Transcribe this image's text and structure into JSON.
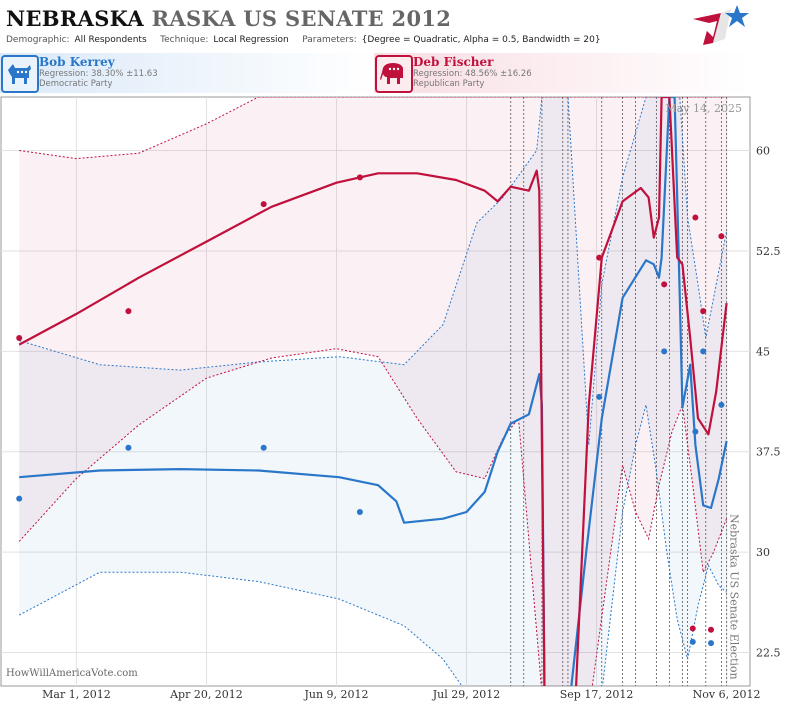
{
  "header": {
    "title_part1": "NEBRASKA",
    "title_part2": "RASKA US SENATE 2012",
    "demographic_label": "Demographic:",
    "demographic_value": "All Respondents",
    "technique_label": "Technique:",
    "technique_value": "Local Regression",
    "parameters_label": "Parameters:",
    "parameters_value": "{Degree = Quadratic, Alpha = 0.5, Bandwidth = 20}"
  },
  "candidates": [
    {
      "name": "Bob Kerrey",
      "regression": "Regression: 38.30% ±11.63",
      "party": "Democratic Party",
      "color": "#2a77c9",
      "icon": "donkey-icon"
    },
    {
      "name": "Deb Fischer",
      "regression": "Regression: 48.56% ±16.26",
      "party": "Republican Party",
      "color": "#c0103c",
      "icon": "elephant-icon"
    }
  ],
  "footer": {
    "source": "HowWillAmericaVote.com"
  },
  "chart_data": {
    "type": "line",
    "date_annotation": "May 14, 2025",
    "event_label": "Nebraska US Senate Election",
    "event_date": "2012-11-06",
    "x_range": [
      "2012-02-01",
      "2012-11-15"
    ],
    "ylim": [
      20,
      64
    ],
    "y_ticks": [
      22.5,
      30,
      37.5,
      45,
      52.5,
      60
    ],
    "x_ticks": [
      {
        "label": "Mar 1, 2012",
        "date": "2012-03-01"
      },
      {
        "label": "Apr 20, 2012",
        "date": "2012-04-20"
      },
      {
        "label": "Jun 9, 2012",
        "date": "2012-06-09"
      },
      {
        "label": "Jul 29, 2012",
        "date": "2012-07-29"
      },
      {
        "label": "Sep 17, 2012",
        "date": "2012-09-17"
      },
      {
        "label": "Nov 6, 2012",
        "date": "2012-11-06"
      }
    ],
    "poll_dates": [
      "2012-08-15",
      "2012-08-20",
      "2012-08-27",
      "2012-09-04",
      "2012-09-06",
      "2012-09-19",
      "2012-09-27",
      "2012-10-02",
      "2012-10-10",
      "2012-10-15",
      "2012-10-20",
      "2012-10-22",
      "2012-10-29",
      "2012-11-04"
    ],
    "series": [
      {
        "name": "Bob Kerrey",
        "color": "#2a77c9",
        "points": [
          {
            "date": "2012-02-08",
            "value": 34.0
          },
          {
            "date": "2012-03-21",
            "value": 37.8
          },
          {
            "date": "2012-05-12",
            "value": 37.8
          },
          {
            "date": "2012-06-18",
            "value": 33.0
          },
          {
            "date": "2012-09-18",
            "value": 41.6
          },
          {
            "date": "2012-10-13",
            "value": 45.0
          },
          {
            "date": "2012-10-24",
            "value": 23.3
          },
          {
            "date": "2012-10-25",
            "value": 39.0
          },
          {
            "date": "2012-10-28",
            "value": 45.0
          },
          {
            "date": "2012-10-31",
            "value": 23.2
          },
          {
            "date": "2012-11-04",
            "value": 41.0
          }
        ],
        "trend": [
          {
            "date": "2012-02-08",
            "value": 35.6
          },
          {
            "date": "2012-03-10",
            "value": 36.1
          },
          {
            "date": "2012-04-10",
            "value": 36.2
          },
          {
            "date": "2012-05-10",
            "value": 36.1
          },
          {
            "date": "2012-06-10",
            "value": 35.6
          },
          {
            "date": "2012-06-25",
            "value": 35.0
          },
          {
            "date": "2012-07-02",
            "value": 33.8
          },
          {
            "date": "2012-07-05",
            "value": 32.2
          },
          {
            "date": "2012-07-20",
            "value": 32.5
          },
          {
            "date": "2012-07-29",
            "value": 33.0
          },
          {
            "date": "2012-08-05",
            "value": 34.5
          },
          {
            "date": "2012-08-10",
            "value": 37.5
          },
          {
            "date": "2012-08-15",
            "value": 39.6
          },
          {
            "date": "2012-08-22",
            "value": 40.3
          },
          {
            "date": "2012-08-26",
            "value": 43.3
          },
          {
            "date": "2012-08-27",
            "value": 41.0
          },
          {
            "date": "2012-08-28",
            "value": 19.5
          },
          {
            "date": "2012-09-07",
            "value": 19.5
          },
          {
            "date": "2012-09-13",
            "value": 30.0
          },
          {
            "date": "2012-09-19",
            "value": 40.0
          },
          {
            "date": "2012-09-27",
            "value": 49.0
          },
          {
            "date": "2012-10-06",
            "value": 51.8
          },
          {
            "date": "2012-10-09",
            "value": 51.5
          },
          {
            "date": "2012-10-11",
            "value": 50.5
          },
          {
            "date": "2012-10-12",
            "value": 52.0
          },
          {
            "date": "2012-10-15",
            "value": 64.0
          },
          {
            "date": "2012-10-17",
            "value": 64.0
          },
          {
            "date": "2012-10-19",
            "value": 49.0
          },
          {
            "date": "2012-10-20",
            "value": 40.8
          },
          {
            "date": "2012-10-23",
            "value": 44.0
          },
          {
            "date": "2012-10-25",
            "value": 38.0
          },
          {
            "date": "2012-10-28",
            "value": 33.5
          },
          {
            "date": "2012-10-31",
            "value": 33.3
          },
          {
            "date": "2012-11-03",
            "value": 35.5
          },
          {
            "date": "2012-11-06",
            "value": 38.3
          }
        ],
        "band_upper": [
          {
            "date": "2012-02-08",
            "value": 45.8
          },
          {
            "date": "2012-03-10",
            "value": 44.0
          },
          {
            "date": "2012-04-10",
            "value": 43.6
          },
          {
            "date": "2012-05-10",
            "value": 44.2
          },
          {
            "date": "2012-06-10",
            "value": 44.6
          },
          {
            "date": "2012-07-05",
            "value": 44.0
          },
          {
            "date": "2012-07-20",
            "value": 47.0
          },
          {
            "date": "2012-08-02",
            "value": 54.6
          },
          {
            "date": "2012-08-12",
            "value": 56.5
          },
          {
            "date": "2012-08-25",
            "value": 60.0
          },
          {
            "date": "2012-08-27",
            "value": 64.0
          },
          {
            "date": "2012-09-06",
            "value": 64.0
          },
          {
            "date": "2012-09-14",
            "value": 38.0
          },
          {
            "date": "2012-09-19",
            "value": 50.0
          },
          {
            "date": "2012-09-27",
            "value": 58.0
          },
          {
            "date": "2012-10-06",
            "value": 64.0
          },
          {
            "date": "2012-10-19",
            "value": 64.0
          },
          {
            "date": "2012-10-22",
            "value": 55.0
          },
          {
            "date": "2012-10-26",
            "value": 50.0
          },
          {
            "date": "2012-10-29",
            "value": 46.0
          },
          {
            "date": "2012-11-02",
            "value": 50.0
          },
          {
            "date": "2012-11-06",
            "value": 54.0
          }
        ],
        "band_lower": [
          {
            "date": "2012-02-08",
            "value": 25.3
          },
          {
            "date": "2012-03-10",
            "value": 28.5
          },
          {
            "date": "2012-04-10",
            "value": 28.5
          },
          {
            "date": "2012-05-10",
            "value": 27.8
          },
          {
            "date": "2012-06-10",
            "value": 26.5
          },
          {
            "date": "2012-07-05",
            "value": 24.5
          },
          {
            "date": "2012-07-20",
            "value": 22.0
          },
          {
            "date": "2012-07-29",
            "value": 19.5
          },
          {
            "date": "2012-09-19",
            "value": 19.5
          },
          {
            "date": "2012-09-27",
            "value": 33.0
          },
          {
            "date": "2012-10-02",
            "value": 38.0
          },
          {
            "date": "2012-10-06",
            "value": 41.0
          },
          {
            "date": "2012-10-10",
            "value": 36.0
          },
          {
            "date": "2012-10-14",
            "value": 30.0
          },
          {
            "date": "2012-10-18",
            "value": 25.0
          },
          {
            "date": "2012-10-22",
            "value": 22.0
          },
          {
            "date": "2012-10-26",
            "value": 26.0
          },
          {
            "date": "2012-10-30",
            "value": 29.0
          },
          {
            "date": "2012-11-03",
            "value": 27.5
          },
          {
            "date": "2012-11-06",
            "value": 27.0
          }
        ]
      },
      {
        "name": "Deb Fischer",
        "color": "#c0103c",
        "points": [
          {
            "date": "2012-02-08",
            "value": 46.0
          },
          {
            "date": "2012-03-21",
            "value": 48.0
          },
          {
            "date": "2012-05-12",
            "value": 56.0
          },
          {
            "date": "2012-06-18",
            "value": 58.0
          },
          {
            "date": "2012-09-18",
            "value": 52.0
          },
          {
            "date": "2012-10-13",
            "value": 50.0
          },
          {
            "date": "2012-10-24",
            "value": 24.3
          },
          {
            "date": "2012-10-25",
            "value": 55.0
          },
          {
            "date": "2012-10-28",
            "value": 48.0
          },
          {
            "date": "2012-10-31",
            "value": 24.2
          },
          {
            "date": "2012-11-04",
            "value": 53.6
          }
        ],
        "trend": [
          {
            "date": "2012-02-08",
            "value": 45.5
          },
          {
            "date": "2012-03-01",
            "value": 47.8
          },
          {
            "date": "2012-03-25",
            "value": 50.5
          },
          {
            "date": "2012-04-20",
            "value": 53.2
          },
          {
            "date": "2012-05-15",
            "value": 55.8
          },
          {
            "date": "2012-06-09",
            "value": 57.6
          },
          {
            "date": "2012-06-25",
            "value": 58.3
          },
          {
            "date": "2012-07-10",
            "value": 58.3
          },
          {
            "date": "2012-07-25",
            "value": 57.8
          },
          {
            "date": "2012-08-05",
            "value": 57.0
          },
          {
            "date": "2012-08-10",
            "value": 56.2
          },
          {
            "date": "2012-08-15",
            "value": 57.3
          },
          {
            "date": "2012-08-22",
            "value": 57.0
          },
          {
            "date": "2012-08-25",
            "value": 58.5
          },
          {
            "date": "2012-08-26",
            "value": 57.0
          },
          {
            "date": "2012-08-28",
            "value": 19.5
          },
          {
            "date": "2012-09-09",
            "value": 19.5
          },
          {
            "date": "2012-09-14",
            "value": 41.0
          },
          {
            "date": "2012-09-19",
            "value": 52.0
          },
          {
            "date": "2012-09-27",
            "value": 56.2
          },
          {
            "date": "2012-10-04",
            "value": 57.2
          },
          {
            "date": "2012-10-07",
            "value": 56.5
          },
          {
            "date": "2012-10-09",
            "value": 53.5
          },
          {
            "date": "2012-10-11",
            "value": 55.0
          },
          {
            "date": "2012-10-12",
            "value": 64.0
          },
          {
            "date": "2012-10-15",
            "value": 64.0
          },
          {
            "date": "2012-10-18",
            "value": 52.0
          },
          {
            "date": "2012-10-20",
            "value": 51.5
          },
          {
            "date": "2012-10-23",
            "value": 46.0
          },
          {
            "date": "2012-10-26",
            "value": 40.0
          },
          {
            "date": "2012-10-30",
            "value": 38.8
          },
          {
            "date": "2012-11-02",
            "value": 42.0
          },
          {
            "date": "2012-11-06",
            "value": 48.6
          }
        ],
        "band_upper": [
          {
            "date": "2012-02-08",
            "value": 60.0
          },
          {
            "date": "2012-03-01",
            "value": 59.4
          },
          {
            "date": "2012-03-25",
            "value": 59.8
          },
          {
            "date": "2012-04-20",
            "value": 62.0
          },
          {
            "date": "2012-05-10",
            "value": 64.0
          },
          {
            "date": "2012-11-06",
            "value": 64.0
          }
        ],
        "band_lower": [
          {
            "date": "2012-02-08",
            "value": 30.8
          },
          {
            "date": "2012-03-01",
            "value": 35.5
          },
          {
            "date": "2012-03-25",
            "value": 39.5
          },
          {
            "date": "2012-04-20",
            "value": 43.0
          },
          {
            "date": "2012-05-15",
            "value": 44.5
          },
          {
            "date": "2012-06-09",
            "value": 45.2
          },
          {
            "date": "2012-06-25",
            "value": 44.6
          },
          {
            "date": "2012-07-10",
            "value": 40.0
          },
          {
            "date": "2012-07-25",
            "value": 36.0
          },
          {
            "date": "2012-08-05",
            "value": 35.5
          },
          {
            "date": "2012-08-12",
            "value": 38.5
          },
          {
            "date": "2012-08-18",
            "value": 40.0
          },
          {
            "date": "2012-08-27",
            "value": 19.5
          },
          {
            "date": "2012-09-15",
            "value": 19.5
          },
          {
            "date": "2012-09-27",
            "value": 36.5
          },
          {
            "date": "2012-10-02",
            "value": 33.0
          },
          {
            "date": "2012-10-07",
            "value": 31.0
          },
          {
            "date": "2012-10-11",
            "value": 35.0
          },
          {
            "date": "2012-10-16",
            "value": 39.0
          },
          {
            "date": "2012-10-20",
            "value": 41.0
          },
          {
            "date": "2012-10-24",
            "value": 35.0
          },
          {
            "date": "2012-10-28",
            "value": 28.5
          },
          {
            "date": "2012-11-01",
            "value": 30.0
          },
          {
            "date": "2012-11-06",
            "value": 32.5
          }
        ]
      }
    ]
  }
}
